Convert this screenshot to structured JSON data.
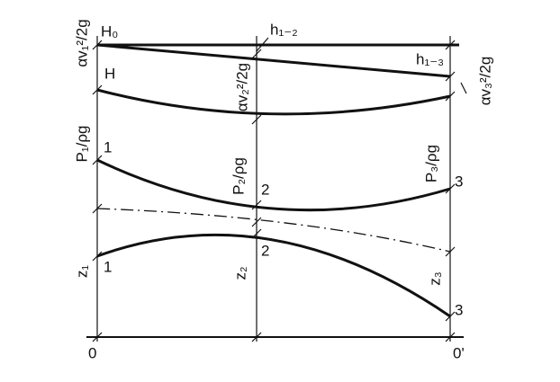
{
  "labels": {
    "total_head": "H₀",
    "loss_1_2": "h₁₋₂",
    "loss_1_3": "h₁₋₃",
    "head": "H",
    "velocity_head_1": "αv₁²/2g",
    "velocity_head_2": "αv₂²/2g",
    "velocity_head_3": "αv₃²/2g",
    "pressure_head_1": "P₁/ρg",
    "pressure_head_2": "P₂/ρg",
    "pressure_head_3": "P₃/ρg",
    "elevation_1": "z₁",
    "elevation_2": "z₂",
    "elevation_3": "z₃",
    "pressure_point_1": "1",
    "pressure_point_2": "2",
    "pressure_point_3": "3",
    "axis_point_1": "1",
    "axis_point_2": "2",
    "axis_point_3": "3",
    "datum_left": "0",
    "datum_right": "0'"
  }
}
